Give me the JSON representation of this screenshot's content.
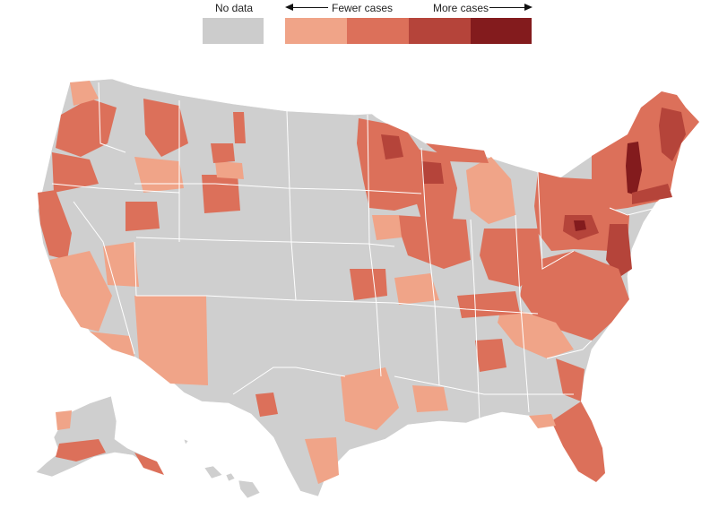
{
  "legend": {
    "no_data_label": "No data",
    "fewer_label": "Fewer cases",
    "more_label": "More cases",
    "no_data_color": "#cccccc",
    "scale_colors": [
      "#f0a488",
      "#dc705a",
      "#b5443a",
      "#831b1d"
    ]
  },
  "map": {
    "region": "United States counties",
    "land_color": "#cfcfcf",
    "border_color": "#ffffff",
    "insets": [
      "Alaska",
      "Hawaii"
    ]
  }
}
